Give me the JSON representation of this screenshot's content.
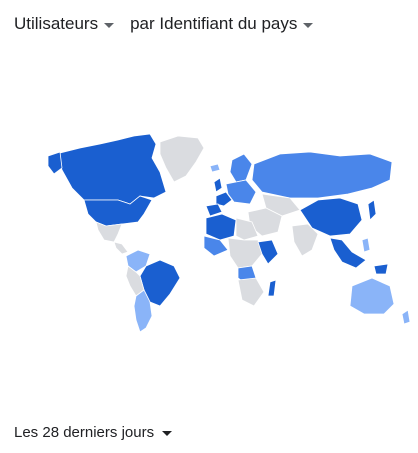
{
  "header": {
    "metric_label": "Utilisateurs",
    "dimension_label": "par Identifiant du pays",
    "caret_icon": "chevron-down-icon"
  },
  "footer": {
    "date_range_label": "Les 28 derniers jours",
    "caret_icon": "chevron-down-icon"
  },
  "map": {
    "colors": {
      "high": "#1a5fd0",
      "medium": "#4a86ea",
      "low": "#8ab4f8",
      "none": "#dadce0"
    }
  }
}
